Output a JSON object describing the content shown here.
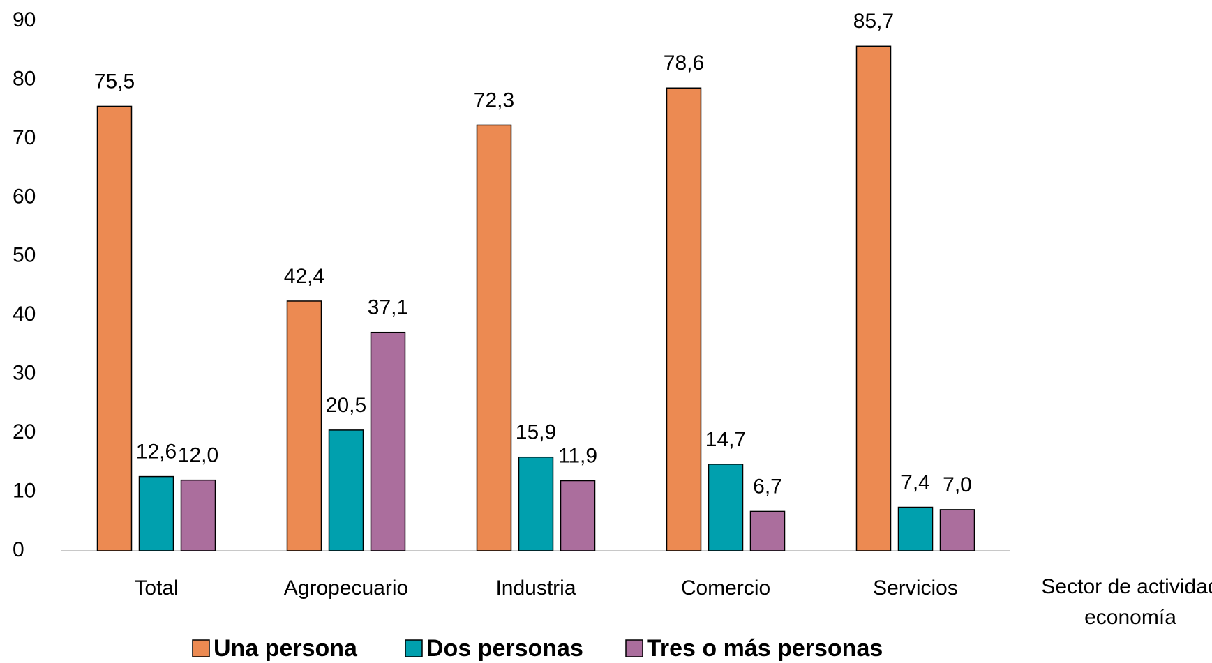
{
  "chart_data": {
    "type": "bar",
    "categories": [
      "Total",
      "Agropecuario",
      "Industria",
      "Comercio",
      "Servicios"
    ],
    "x_label": [
      "Sector de actividad",
      "economía"
    ],
    "series": [
      {
        "name": "Una persona",
        "color": "#ec8a52",
        "values": [
          75.5,
          42.4,
          72.3,
          78.6,
          85.7
        ],
        "value_labels": [
          "75,5",
          "42,4",
          "72,3",
          "78,6",
          "85,7"
        ]
      },
      {
        "name": "Dos personas",
        "color": "#00a0ae",
        "values": [
          12.6,
          20.5,
          15.9,
          14.7,
          7.4
        ],
        "value_labels": [
          "12,6",
          "20,5",
          "15,9",
          "14,7",
          "7,4"
        ]
      },
      {
        "name": "Tres o más personas",
        "color": "#ab6e9d",
        "values": [
          12.0,
          37.1,
          11.9,
          6.7,
          7.0
        ],
        "value_labels": [
          "12,0",
          "37,1",
          "11,9",
          "6,7",
          "7,0"
        ]
      }
    ],
    "ylim": [
      0,
      90
    ],
    "yticks": [
      0,
      10,
      20,
      30,
      40,
      50,
      60,
      70,
      80,
      90
    ],
    "grid": false,
    "legend": "bottom"
  }
}
